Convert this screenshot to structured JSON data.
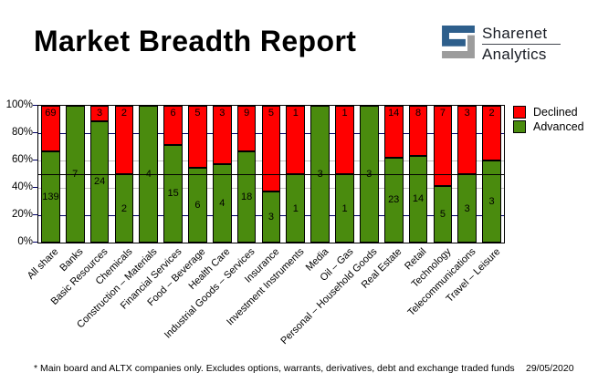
{
  "header": {
    "title": "Market Breadth Report",
    "logo": {
      "name_top": "Sharenet",
      "name_bottom": "Analytics",
      "icon_blue": "#2e5f8c",
      "icon_gray": "#9c9c9c"
    }
  },
  "chart_data": {
    "type": "bar",
    "stacked": true,
    "percent_stacked": true,
    "categories": [
      "All share",
      "Banks",
      "Basic Resources",
      "Chemicals",
      "Construction – Materials",
      "Financial Services",
      "Food – Beverage",
      "Health Care",
      "Industrial Goods – Services",
      "Insurance",
      "Investment Instruments",
      "Media",
      "Oil – Gas",
      "Personal – Household Goods",
      "Real Estate",
      "Retail",
      "Technology",
      "Telecommunications",
      "Travel – Leisure"
    ],
    "series": [
      {
        "name": "Declined",
        "color": "#ff0000",
        "values": [
          69,
          0,
          3,
          2,
          0,
          6,
          5,
          3,
          9,
          5,
          1,
          0,
          1,
          0,
          14,
          8,
          7,
          3,
          2
        ]
      },
      {
        "name": "Advanced",
        "color": "#4a8b0e",
        "values": [
          139,
          7,
          24,
          2,
          4,
          15,
          6,
          4,
          18,
          3,
          1,
          3,
          1,
          3,
          23,
          14,
          5,
          3,
          3
        ]
      }
    ],
    "y_ticks": [
      "100%",
      "80%",
      "60%",
      "40%",
      "20%",
      "0%"
    ],
    "ylim": [
      0,
      100
    ],
    "reference_line_percent": 50,
    "gridlines": {
      "navy_at_percent": [
        20,
        80
      ],
      "silver_at_percent": [
        40,
        60
      ],
      "navy_color": "#000066",
      "silver_color": "#c0c0c0"
    },
    "legend_position": "top-right",
    "grid": true
  },
  "legend": {
    "items": [
      {
        "label": "Declined",
        "color": "#ff0000"
      },
      {
        "label": "Advanced",
        "color": "#4a8b0e"
      }
    ]
  },
  "footer": {
    "note": "* Main board and ALTX companies only. Excludes options, warrants, derivatives, debt and exchange traded funds",
    "date": "29/05/2020"
  }
}
